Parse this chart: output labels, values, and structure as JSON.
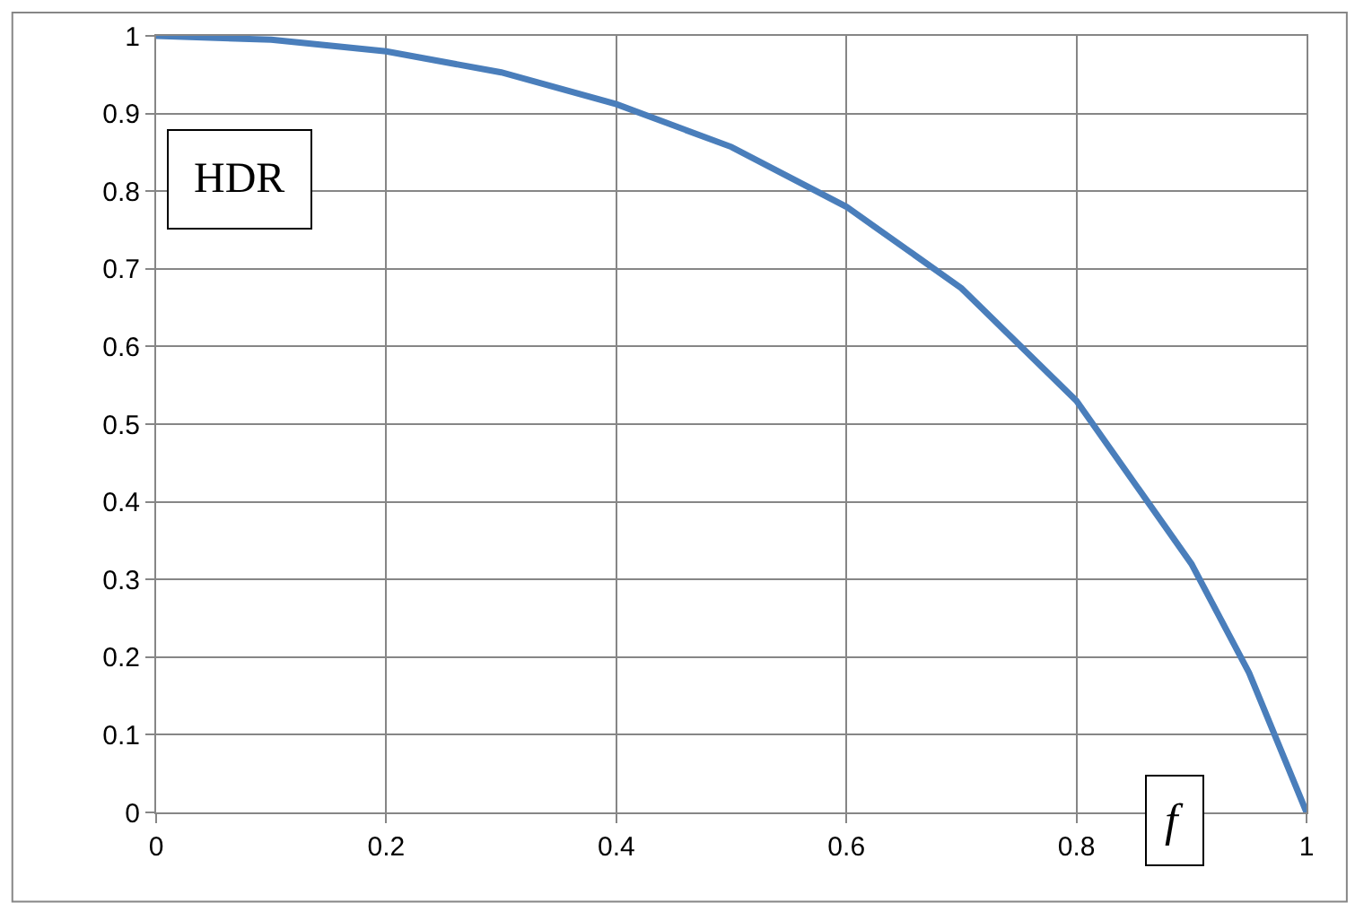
{
  "chart_data": {
    "type": "line",
    "xlabel": "f",
    "ylabel": "HDR",
    "x": [
      0,
      0.1,
      0.2,
      0.3,
      0.4,
      0.5,
      0.6,
      0.7,
      0.8,
      0.9,
      0.95,
      1
    ],
    "series": [
      {
        "color": "#4a7ebb",
        "values": [
          1,
          0.995,
          0.98,
          0.953,
          0.912,
          0.857,
          0.78,
          0.675,
          0.53,
          0.32,
          0.18,
          0
        ]
      }
    ],
    "xlim": [
      0,
      1
    ],
    "xticks": [
      0,
      0.2,
      0.4,
      0.6,
      0.8,
      1
    ],
    "ylim": [
      0,
      1
    ],
    "yticks": [
      0,
      0.1,
      0.2,
      0.3,
      0.4,
      0.5,
      0.6,
      0.7,
      0.8,
      0.9,
      1
    ],
    "grid": true,
    "legend": false,
    "marker": "none",
    "line_style": "solid"
  }
}
